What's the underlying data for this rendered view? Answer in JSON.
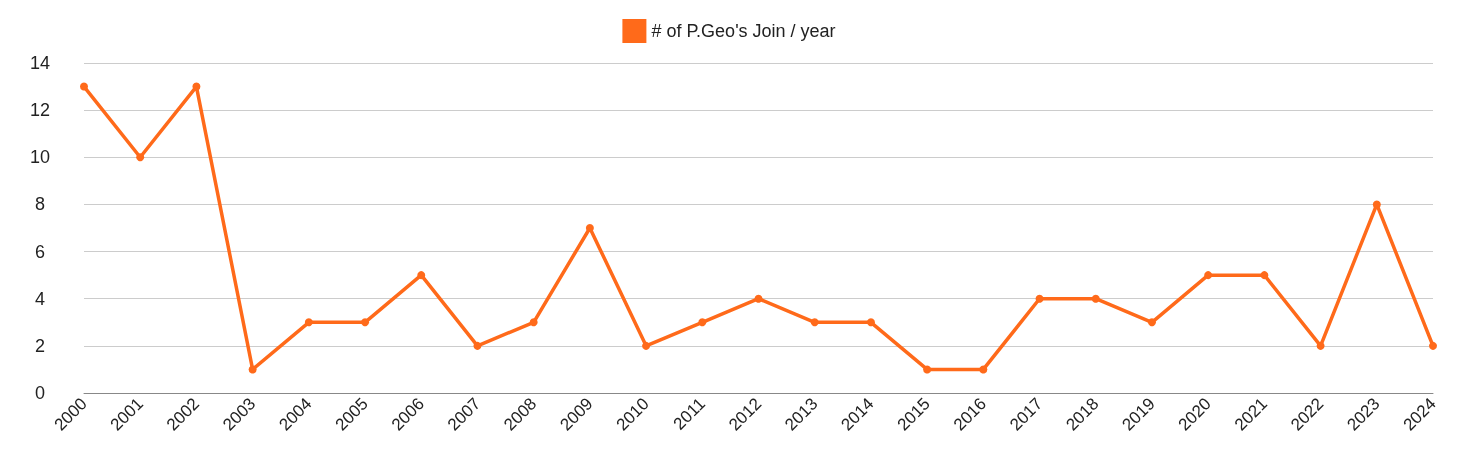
{
  "chart_data": {
    "type": "line",
    "categories": [
      "2000",
      "2001",
      "2002",
      "2003",
      "2004",
      "2005",
      "2006",
      "2007",
      "2008",
      "2009",
      "2010",
      "2011",
      "2012",
      "2013",
      "2014",
      "2015",
      "2016",
      "2017",
      "2018",
      "2019",
      "2020",
      "2021",
      "2022",
      "2023",
      "2024"
    ],
    "series": [
      {
        "name": "# of P.Geo's Join / year",
        "color": "#ff6a1a",
        "values": [
          13,
          10,
          13,
          1,
          3,
          3,
          5,
          2,
          3,
          7,
          2,
          3,
          4,
          3,
          3,
          1,
          1,
          4,
          4,
          3,
          5,
          5,
          2,
          8,
          2
        ]
      }
    ],
    "ylim": [
      0,
      14
    ],
    "yticks": [
      0,
      2,
      4,
      6,
      8,
      10,
      12,
      14
    ],
    "grid": "y",
    "legend": "top",
    "marker": "circle",
    "line_style": "solid"
  }
}
